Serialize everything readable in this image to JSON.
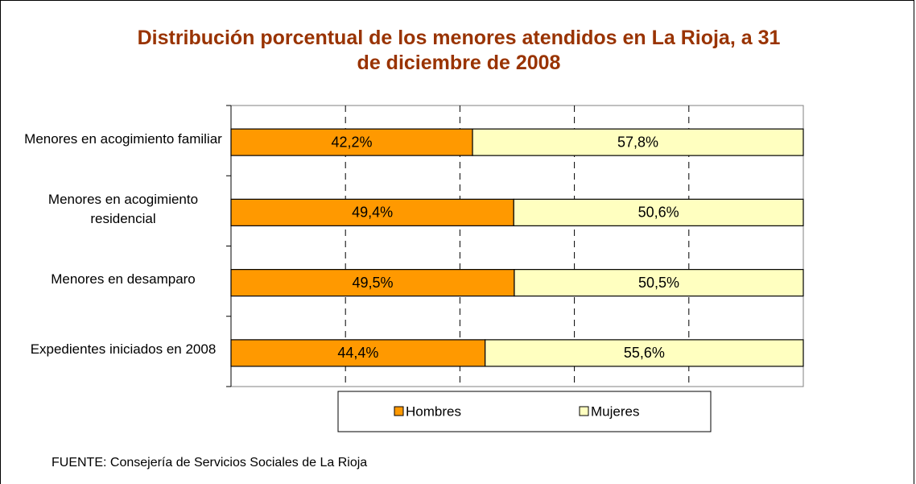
{
  "chart_data": {
    "type": "stacked_barh",
    "title": "Distribución porcentual de los menores atendidos en La Rioja, a 31 de diciembre de 2008",
    "categories": [
      "Menores en acogimiento familiar",
      "Menores en acogimiento residencial",
      "Menores en desamparo",
      "Expedientes iniciados en 2008"
    ],
    "series": [
      {
        "name": "Hombres",
        "color": "#ff9900",
        "values": [
          42.2,
          49.4,
          49.5,
          44.4
        ],
        "value_labels": [
          "42,2%",
          "49,4%",
          "49,5%",
          "44,4%"
        ]
      },
      {
        "name": "Mujeres",
        "color": "#ffffc0",
        "values": [
          57.8,
          50.6,
          50.5,
          55.6
        ],
        "value_labels": [
          "57,8%",
          "50,6%",
          "50,5%",
          "55,6%"
        ]
      }
    ],
    "xlim": [
      0,
      100
    ],
    "xticks": [
      20,
      40,
      60,
      80
    ],
    "grid": true,
    "legend": "bottom",
    "source": "FUENTE: Consejería de Servicios Sociales de La Rioja"
  }
}
